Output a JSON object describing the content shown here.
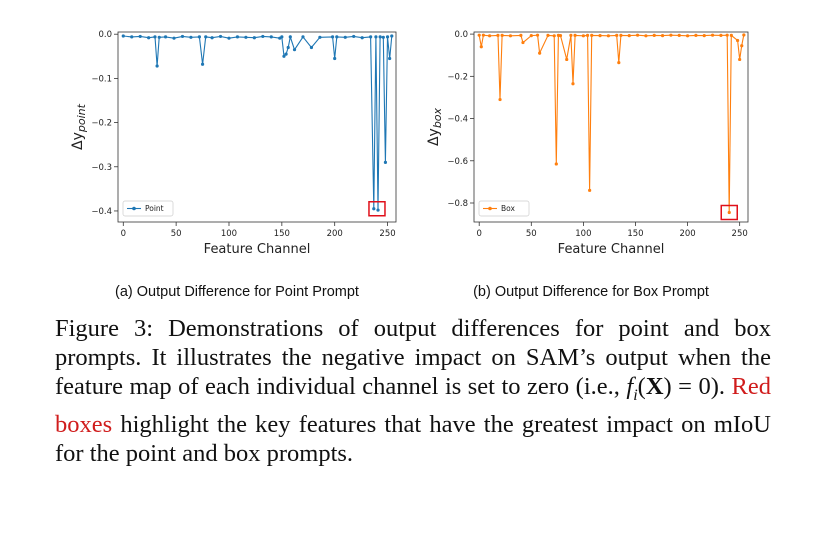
{
  "chart_data": [
    {
      "type": "line",
      "xlabel": "Feature Channel",
      "ylabel_main": "Δy",
      "ylabel_sub": "point",
      "xlim": [
        -5,
        258
      ],
      "ylim": [
        -0.425,
        0.005
      ],
      "xticks": [
        0,
        50,
        100,
        150,
        200,
        250
      ],
      "yticks": [
        0.0,
        -0.1,
        -0.2,
        -0.3,
        -0.4
      ],
      "ytick_labels": [
        "0.0",
        "−0.1",
        "−0.2",
        "−0.3",
        "−0.4"
      ],
      "color": "#1f77b4",
      "legend": "Point",
      "legend_position": "bottom-left",
      "grid": false,
      "highlight": {
        "x": 240,
        "y": -0.395
      },
      "series": [
        {
          "name": "Point",
          "x": [
            0,
            8,
            16,
            24,
            30,
            32,
            34,
            40,
            48,
            56,
            64,
            72,
            75,
            78,
            84,
            92,
            100,
            108,
            116,
            124,
            132,
            140,
            148,
            150,
            152,
            154,
            156,
            158,
            162,
            170,
            178,
            186,
            198,
            200,
            202,
            210,
            218,
            226,
            234,
            237,
            239,
            241,
            243,
            246,
            248,
            250,
            252,
            254
          ],
          "values": [
            -0.004,
            -0.006,
            -0.005,
            -0.008,
            -0.006,
            -0.072,
            -0.007,
            -0.006,
            -0.009,
            -0.005,
            -0.007,
            -0.006,
            -0.068,
            -0.006,
            -0.008,
            -0.005,
            -0.009,
            -0.006,
            -0.007,
            -0.008,
            -0.005,
            -0.006,
            -0.009,
            -0.006,
            -0.05,
            -0.045,
            -0.03,
            -0.006,
            -0.035,
            -0.006,
            -0.03,
            -0.007,
            -0.006,
            -0.055,
            -0.006,
            -0.007,
            -0.005,
            -0.008,
            -0.006,
            -0.395,
            -0.006,
            -0.398,
            -0.006,
            -0.007,
            -0.29,
            -0.006,
            -0.055,
            -0.004
          ]
        }
      ]
    },
    {
      "type": "line",
      "xlabel": "Feature Channel",
      "ylabel_main": "Δy",
      "ylabel_sub": "box",
      "xlim": [
        -5,
        258
      ],
      "ylim": [
        -0.89,
        0.01
      ],
      "xticks": [
        0,
        50,
        100,
        150,
        200,
        250
      ],
      "yticks": [
        0.0,
        -0.2,
        -0.4,
        -0.6,
        -0.8
      ],
      "ytick_labels": [
        "0.0",
        "−0.2",
        "−0.4",
        "−0.6",
        "−0.8"
      ],
      "color": "#ff7f0e",
      "legend": "Box",
      "legend_position": "bottom-left",
      "grid": false,
      "highlight": {
        "x": 240,
        "y": -0.845
      },
      "series": [
        {
          "name": "Box",
          "x": [
            0,
            2,
            4,
            10,
            18,
            20,
            22,
            30,
            40,
            42,
            50,
            56,
            58,
            66,
            72,
            74,
            76,
            78,
            84,
            88,
            90,
            92,
            100,
            104,
            106,
            108,
            116,
            124,
            132,
            134,
            136,
            144,
            152,
            160,
            168,
            176,
            184,
            192,
            200,
            208,
            216,
            224,
            232,
            238,
            240,
            242,
            248,
            250,
            252,
            254
          ],
          "values": [
            -0.005,
            -0.06,
            -0.005,
            -0.008,
            -0.006,
            -0.31,
            -0.006,
            -0.008,
            -0.006,
            -0.04,
            -0.007,
            -0.005,
            -0.09,
            -0.006,
            -0.008,
            -0.615,
            -0.006,
            -0.007,
            -0.12,
            -0.006,
            -0.235,
            -0.006,
            -0.008,
            -0.006,
            -0.74,
            -0.006,
            -0.007,
            -0.008,
            -0.006,
            -0.135,
            -0.006,
            -0.007,
            -0.005,
            -0.008,
            -0.006,
            -0.007,
            -0.005,
            -0.006,
            -0.008,
            -0.006,
            -0.007,
            -0.005,
            -0.006,
            -0.005,
            -0.845,
            -0.006,
            -0.03,
            -0.12,
            -0.055,
            -0.004
          ]
        }
      ]
    }
  ],
  "subcaptions": {
    "a": "(a) Output Difference for Point Prompt",
    "b": "(b) Output Difference for Box Prompt"
  },
  "caption": {
    "part1": "Figure 3: Demonstrations of output differences for point and box prompts. It illustrates the negative impact on SAM’s output when the feature map of each individual channel is set to zero (i.e., ",
    "math_f": "f",
    "math_i": "i",
    "math_open": "(",
    "math_X": "X",
    "math_eq": ") = 0",
    "part2": "). ",
    "red_text": "Red boxes",
    "part3": " highlight the key features that have the greatest impact on mIoU for the point and box prompts."
  }
}
